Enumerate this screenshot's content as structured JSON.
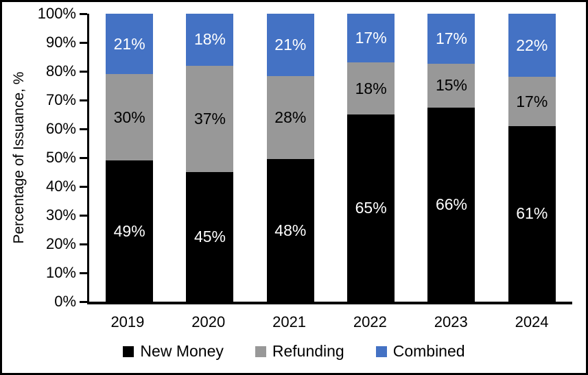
{
  "figure": {
    "background_color": "#ffffff",
    "border_color": "#000000",
    "axis_color": "#000000"
  },
  "chart_data": {
    "type": "bar",
    "stacked": true,
    "percent_stacked": true,
    "title": "",
    "xlabel": "",
    "ylabel": "Percentage of Issuance, %",
    "ylim": [
      0,
      100
    ],
    "grid": false,
    "legend_position": "bottom",
    "y_ticks": [
      "0%",
      "10%",
      "20%",
      "30%",
      "40%",
      "50%",
      "60%",
      "70%",
      "80%",
      "90%",
      "100%"
    ],
    "categories": [
      "2019",
      "2020",
      "2021",
      "2022",
      "2023",
      "2024"
    ],
    "series": [
      {
        "name": "New Money",
        "color": "#000000",
        "label_color": "#ffffff",
        "values": [
          49,
          45,
          48,
          65,
          66,
          61
        ],
        "labels": [
          "49%",
          "45%",
          "48%",
          "65%",
          "66%",
          "61%"
        ]
      },
      {
        "name": "Refunding",
        "color": "#989898",
        "label_color": "#000000",
        "values": [
          30,
          37,
          28,
          18,
          15,
          17
        ],
        "labels": [
          "30%",
          "37%",
          "28%",
          "18%",
          "15%",
          "17%"
        ]
      },
      {
        "name": "Combined",
        "color": "#4472C4",
        "label_color": "#ffffff",
        "values": [
          21,
          18,
          21,
          17,
          17,
          22
        ],
        "labels": [
          "21%",
          "18%",
          "21%",
          "17%",
          "17%",
          "22%"
        ]
      }
    ]
  }
}
